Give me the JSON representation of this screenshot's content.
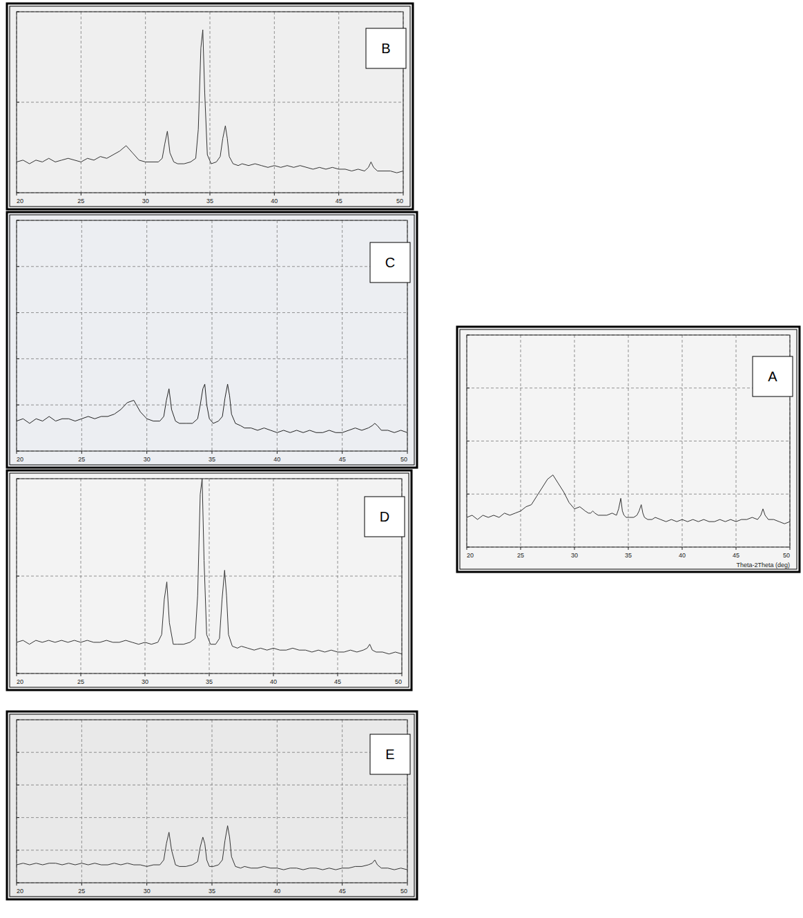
{
  "chart_data": [
    {
      "type": "line",
      "title": "A",
      "x_label": "Theta-2Theta (deg)",
      "x": [
        20,
        20.5,
        21,
        21.5,
        22,
        22.5,
        23,
        23.5,
        24,
        24.5,
        25,
        25.5,
        26,
        26.5,
        27,
        27.5,
        28,
        28.5,
        29,
        29.5,
        30,
        30.5,
        31,
        31.3,
        31.5,
        31.7,
        31.9,
        32.2,
        32.5,
        33,
        33.5,
        33.9,
        34.1,
        34.3,
        34.45,
        34.6,
        34.8,
        35.1,
        35.5,
        35.8,
        36.0,
        36.2,
        36.35,
        36.5,
        36.8,
        37.2,
        37.5,
        38,
        38.5,
        39,
        39.5,
        40,
        40.5,
        41,
        41.5,
        42,
        42.5,
        43,
        43.5,
        44,
        44.5,
        45,
        45.5,
        46,
        46.5,
        47,
        47.3,
        47.5,
        47.7,
        48,
        48.5,
        49,
        49.5,
        50
      ],
      "values": [
        14,
        15,
        13,
        15,
        14,
        15,
        14,
        16,
        15,
        16,
        17,
        19,
        20,
        24,
        28,
        32,
        34,
        30,
        26,
        21,
        18,
        19,
        17,
        16,
        16,
        17,
        16,
        15,
        15,
        15,
        16,
        15,
        18,
        23,
        17,
        15,
        14,
        14,
        14,
        15,
        17,
        20,
        16,
        14,
        13,
        13,
        14,
        13,
        12,
        13,
        12,
        13,
        12,
        13,
        12,
        13,
        12,
        12,
        13,
        12,
        13,
        12,
        13,
        13,
        14,
        13,
        15,
        18,
        15,
        13,
        13,
        12,
        11,
        12
      ],
      "color": "#333333",
      "xlim": [
        20,
        50
      ],
      "xticks": [
        20,
        25,
        30,
        35,
        40,
        45,
        50
      ],
      "ylim": [
        0,
        100
      ],
      "yticks": [
        0,
        25,
        50,
        75,
        100
      ],
      "grid": true,
      "tick_labels": "x"
    },
    {
      "type": "line",
      "title": "B",
      "x": [
        20,
        20.5,
        21,
        21.5,
        22,
        22.5,
        23,
        23.5,
        24,
        24.5,
        25,
        25.5,
        26,
        26.5,
        27,
        27.5,
        28,
        28.5,
        29,
        29.5,
        30,
        30.5,
        31,
        31.3,
        31.5,
        31.7,
        31.9,
        32.2,
        32.5,
        33,
        33.5,
        33.9,
        34.1,
        34.3,
        34.45,
        34.6,
        34.8,
        35.1,
        35.5,
        35.8,
        36.0,
        36.2,
        36.35,
        36.5,
        36.8,
        37.2,
        37.5,
        38,
        38.5,
        39,
        39.5,
        40,
        40.5,
        41,
        41.5,
        42,
        42.5,
        43,
        43.5,
        44,
        44.5,
        45,
        45.5,
        46,
        46.5,
        47,
        47.3,
        47.5,
        47.7,
        48,
        48.5,
        49,
        49.5,
        50
      ],
      "values": [
        17,
        18,
        16,
        18,
        17,
        19,
        17,
        18,
        19,
        18,
        17,
        19,
        18,
        20,
        19,
        21,
        23,
        26,
        22,
        18,
        17,
        17,
        17,
        19,
        27,
        34,
        22,
        17,
        16,
        16,
        17,
        19,
        35,
        80,
        90,
        55,
        21,
        16,
        17,
        20,
        30,
        37,
        30,
        20,
        16,
        15,
        16,
        15,
        16,
        15,
        14,
        15,
        14,
        15,
        14,
        15,
        14,
        13,
        14,
        13,
        14,
        13,
        13,
        12,
        13,
        12,
        14,
        17,
        14,
        12,
        12,
        12,
        11,
        12
      ],
      "color": "#333333",
      "xlim": [
        20,
        50
      ],
      "xticks": [
        20,
        25,
        30,
        35,
        40,
        45,
        50
      ],
      "ylim": [
        0,
        100
      ],
      "yticks": [
        0,
        50,
        100
      ],
      "grid": true,
      "tick_labels": "x"
    },
    {
      "type": "line",
      "title": "C",
      "x": [
        20,
        20.5,
        21,
        21.5,
        22,
        22.5,
        23,
        23.5,
        24,
        24.5,
        25,
        25.5,
        26,
        26.5,
        27,
        27.5,
        28,
        28.5,
        29,
        29.5,
        30,
        30.5,
        31,
        31.3,
        31.5,
        31.7,
        31.9,
        32.2,
        32.5,
        33,
        33.5,
        33.9,
        34.1,
        34.3,
        34.45,
        34.6,
        34.8,
        35.1,
        35.5,
        35.8,
        36.0,
        36.2,
        36.35,
        36.5,
        36.8,
        37.2,
        37.5,
        38,
        38.5,
        39,
        39.5,
        40,
        40.5,
        41,
        41.5,
        42,
        42.5,
        43,
        43.5,
        44,
        44.5,
        45,
        45.5,
        46,
        46.5,
        47,
        47.3,
        47.5,
        47.7,
        48,
        48.5,
        49,
        49.5,
        50
      ],
      "values": [
        13,
        14,
        12,
        14,
        13,
        15,
        13,
        14,
        14,
        13,
        14,
        15,
        14,
        15,
        15,
        16,
        18,
        21,
        22,
        17,
        14,
        13,
        13,
        15,
        22,
        27,
        18,
        13,
        12,
        12,
        12,
        14,
        20,
        27,
        29,
        20,
        14,
        12,
        13,
        15,
        23,
        29,
        24,
        16,
        12,
        11,
        10,
        10,
        9,
        10,
        9,
        8,
        9,
        8,
        9,
        8,
        9,
        8,
        8,
        9,
        8,
        8,
        9,
        10,
        9,
        10,
        11,
        12,
        11,
        9,
        9,
        8,
        9,
        8
      ],
      "color": "#222222",
      "xlim": [
        20,
        50
      ],
      "xticks": [
        20,
        25,
        30,
        35,
        40,
        45,
        50
      ],
      "ylim": [
        0,
        100
      ],
      "yticks": [
        0,
        20,
        40,
        60,
        80,
        100
      ],
      "grid": true,
      "tick_labels": "x"
    },
    {
      "type": "line",
      "title": "D",
      "x": [
        20,
        20.5,
        21,
        21.5,
        22,
        22.5,
        23,
        23.5,
        24,
        24.5,
        25,
        25.5,
        26,
        26.5,
        27,
        27.5,
        28,
        28.5,
        29,
        29.5,
        30,
        30.5,
        31,
        31.3,
        31.5,
        31.7,
        31.9,
        32.2,
        32.5,
        33,
        33.5,
        33.9,
        34.1,
        34.3,
        34.45,
        34.6,
        34.8,
        35.1,
        35.5,
        35.8,
        36.0,
        36.2,
        36.35,
        36.5,
        36.8,
        37.2,
        37.5,
        38,
        38.5,
        39,
        39.5,
        40,
        40.5,
        41,
        41.5,
        42,
        42.5,
        43,
        43.5,
        44,
        44.5,
        45,
        45.5,
        46,
        46.5,
        47,
        47.3,
        47.5,
        47.7,
        48,
        48.5,
        49,
        49.5,
        50
      ],
      "values": [
        16,
        17,
        15,
        17,
        16,
        17,
        16,
        17,
        16,
        17,
        16,
        17,
        16,
        16,
        17,
        16,
        16,
        17,
        16,
        15,
        16,
        15,
        16,
        20,
        38,
        47,
        26,
        15,
        15,
        15,
        16,
        18,
        40,
        92,
        100,
        58,
        20,
        15,
        15,
        18,
        38,
        53,
        40,
        20,
        14,
        13,
        14,
        13,
        12,
        13,
        12,
        13,
        12,
        12,
        13,
        12,
        12,
        11,
        12,
        11,
        12,
        11,
        11,
        12,
        11,
        12,
        13,
        15,
        12,
        11,
        11,
        10,
        11,
        10
      ],
      "color": "#333333",
      "xlim": [
        20,
        50
      ],
      "xticks": [
        20,
        25,
        30,
        35,
        40,
        45,
        50
      ],
      "ylim": [
        0,
        100
      ],
      "yticks": [
        0,
        50,
        100
      ],
      "grid": true,
      "tick_labels": "x"
    },
    {
      "type": "line",
      "title": "E",
      "x": [
        20,
        20.5,
        21,
        21.5,
        22,
        22.5,
        23,
        23.5,
        24,
        24.5,
        25,
        25.5,
        26,
        26.5,
        27,
        27.5,
        28,
        28.5,
        29,
        29.5,
        30,
        30.5,
        31,
        31.3,
        31.5,
        31.7,
        31.9,
        32.2,
        32.5,
        33,
        33.5,
        33.9,
        34.1,
        34.3,
        34.45,
        34.6,
        34.8,
        35.1,
        35.5,
        35.8,
        36.0,
        36.2,
        36.35,
        36.5,
        36.8,
        37.2,
        37.5,
        38,
        38.5,
        39,
        39.5,
        40,
        40.5,
        41,
        41.5,
        42,
        42.5,
        43,
        43.5,
        44,
        44.5,
        45,
        45.5,
        46,
        46.5,
        47,
        47.3,
        47.5,
        47.7,
        48,
        48.5,
        49,
        49.5,
        50
      ],
      "values": [
        11,
        12,
        11,
        12,
        11,
        12,
        12,
        11,
        12,
        11,
        12,
        11,
        12,
        11,
        11,
        12,
        11,
        12,
        11,
        11,
        10,
        11,
        11,
        14,
        24,
        31,
        20,
        11,
        10,
        10,
        11,
        13,
        22,
        28,
        24,
        14,
        10,
        10,
        11,
        14,
        26,
        35,
        28,
        16,
        10,
        9,
        10,
        9,
        9,
        10,
        9,
        9,
        8,
        9,
        9,
        8,
        9,
        9,
        8,
        9,
        8,
        9,
        9,
        10,
        10,
        11,
        12,
        14,
        11,
        9,
        9,
        8,
        9,
        8
      ],
      "color": "#333333",
      "xlim": [
        20,
        50
      ],
      "xticks": [
        20,
        25,
        30,
        35,
        40,
        45,
        50
      ],
      "ylim": [
        0,
        100
      ],
      "yticks": [
        0,
        20,
        40,
        60,
        80,
        100
      ],
      "grid": true,
      "tick_labels": "x"
    }
  ]
}
